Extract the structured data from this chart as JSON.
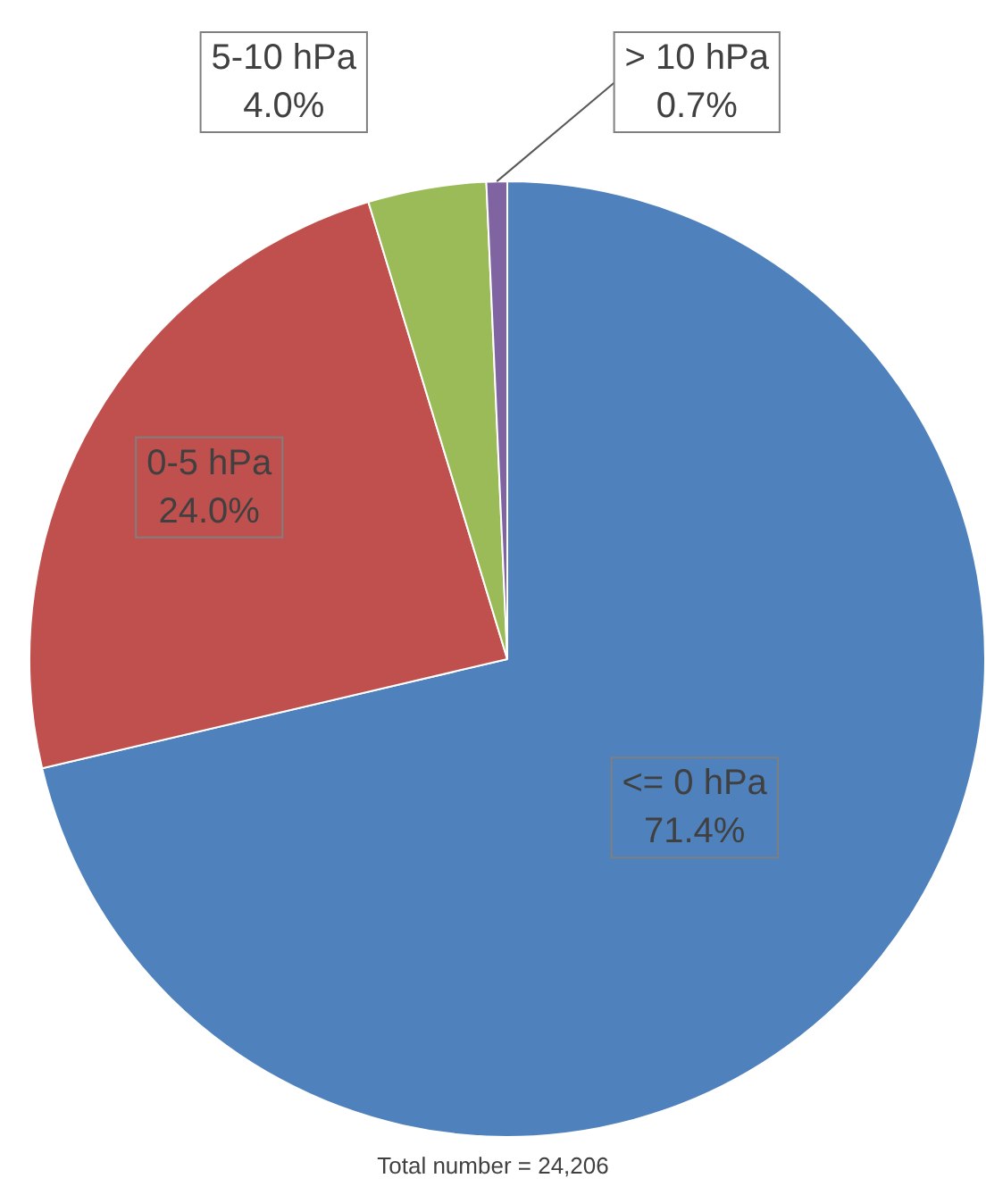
{
  "chart_data": {
    "type": "pie",
    "categories": [
      "<= 0 hPa",
      "0-5 hPa",
      "5-10 hPa",
      "> 10 hPa"
    ],
    "values": [
      71.4,
      24.0,
      4.0,
      0.7
    ],
    "value_labels": [
      "71.4%",
      "24.0%",
      "4.0%",
      "0.7%"
    ],
    "colors": [
      "#4f81bd",
      "#c0504d",
      "#9bbb59",
      "#8064a2"
    ],
    "legend": false,
    "annotations": [
      "Total number = 24,206"
    ]
  }
}
